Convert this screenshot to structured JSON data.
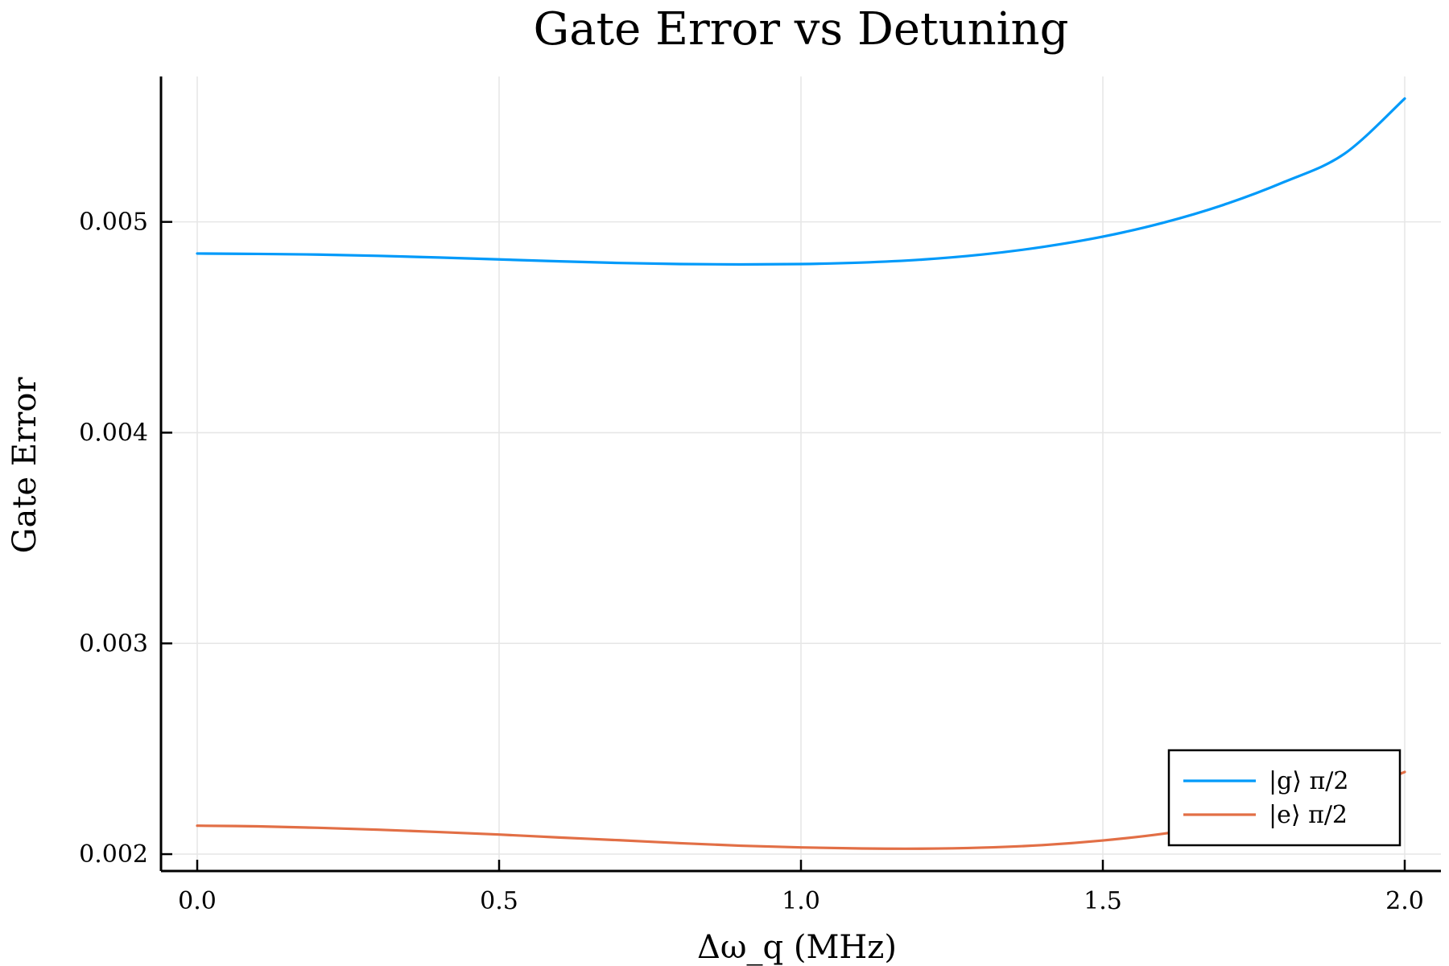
{
  "chart_data": {
    "type": "line",
    "title": "Gate Error vs Detuning",
    "xlabel": "Δω_q (MHz)",
    "ylabel": "Gate Error",
    "xlim": [
      -0.06,
      2.06
    ],
    "ylim": [
      0.00192,
      0.00569
    ],
    "x_ticks": [
      0.0,
      0.5,
      1.0,
      1.5,
      2.0
    ],
    "x_tick_labels": [
      "0.0",
      "0.5",
      "1.0",
      "1.5",
      "2.0"
    ],
    "y_ticks": [
      0.002,
      0.003,
      0.004,
      0.005
    ],
    "y_tick_labels": [
      "0.002",
      "0.003",
      "0.004",
      "0.005"
    ],
    "grid": true,
    "legend_position": "bottom-right",
    "series": [
      {
        "name": "|g⟩ π/2",
        "color": "#009AFA",
        "x": [
          0.0,
          0.1,
          0.2,
          0.3,
          0.4,
          0.5,
          0.6,
          0.7,
          0.8,
          0.9,
          1.0,
          1.1,
          1.2,
          1.3,
          1.4,
          1.5,
          1.6,
          1.7,
          1.8,
          1.9,
          2.0
        ],
        "values": [
          0.00485,
          0.004848,
          0.004845,
          0.004839,
          0.004831,
          0.004822,
          0.004813,
          0.004805,
          0.0048,
          0.004798,
          0.0048,
          0.004807,
          0.004821,
          0.004845,
          0.004881,
          0.00493,
          0.004996,
          0.005081,
          0.005189,
          0.005323,
          0.005585
        ]
      },
      {
        "name": "|e⟩ π/2",
        "color": "#E26F46",
        "x": [
          0.0,
          0.1,
          0.2,
          0.3,
          0.4,
          0.5,
          0.6,
          0.7,
          0.8,
          0.9,
          1.0,
          1.1,
          1.2,
          1.3,
          1.4,
          1.5,
          1.6,
          1.7,
          1.8,
          1.9,
          2.0
        ],
        "values": [
          0.002135,
          0.002132,
          0.002125,
          0.002116,
          0.002105,
          0.002093,
          0.002079,
          0.002066,
          0.002052,
          0.00204,
          0.002032,
          0.002027,
          0.002026,
          0.002031,
          0.002043,
          0.002065,
          0.002097,
          0.002142,
          0.002201,
          0.002278,
          0.00239
        ]
      }
    ]
  }
}
